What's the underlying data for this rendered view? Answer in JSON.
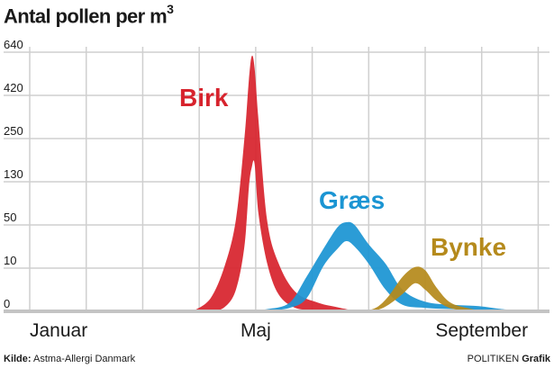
{
  "title_main": "Antal pollen per m",
  "title_sup": "3",
  "source_label": "Kilde:",
  "source_text": "Astma-Allergi Danmark",
  "credit_publisher": "POLITIKEN",
  "credit_dept": "Grafik",
  "colors": {
    "Birk": "#d7232d",
    "Græs": "#1b95d3",
    "Bynke": "#b58a1c",
    "grid": "#cfcfcf",
    "baseline": "#c4c4c4"
  },
  "chart_data": {
    "type": "area",
    "title": "Antal pollen per m³",
    "xlabel": "",
    "ylabel": "",
    "x_unit": "month index (0 = 1 January)",
    "xlim": [
      0,
      9.2
    ],
    "y_scale": "nonlinear (as printed on axis)",
    "y_ticks": [
      0,
      10,
      50,
      130,
      250,
      420,
      640
    ],
    "x_tick_labels": [
      {
        "label": "Januar",
        "x": 0
      },
      {
        "label": "Maj",
        "x": 4
      },
      {
        "label": "September",
        "x": 8
      }
    ],
    "grid": true,
    "legend": "inline labels next to curves",
    "series": [
      {
        "name": "Birk",
        "points": [
          {
            "x": 2.9,
            "min": 0,
            "max": 0
          },
          {
            "x": 3.2,
            "min": 0,
            "max": 3
          },
          {
            "x": 3.45,
            "min": 1,
            "max": 12
          },
          {
            "x": 3.65,
            "min": 5,
            "max": 60
          },
          {
            "x": 3.8,
            "min": 30,
            "max": 250
          },
          {
            "x": 3.88,
            "min": 120,
            "max": 500
          },
          {
            "x": 3.93,
            "min": 170,
            "max": 620
          },
          {
            "x": 3.98,
            "min": 180,
            "max": 560
          },
          {
            "x": 4.05,
            "min": 70,
            "max": 320
          },
          {
            "x": 4.2,
            "min": 15,
            "max": 60
          },
          {
            "x": 4.4,
            "min": 4,
            "max": 15
          },
          {
            "x": 4.7,
            "min": 0.8,
            "max": 4.5
          },
          {
            "x": 5.1,
            "min": 0.3,
            "max": 2.0
          },
          {
            "x": 5.5,
            "min": 0,
            "max": 0.8
          },
          {
            "x": 5.75,
            "min": 0,
            "max": 0
          }
        ]
      },
      {
        "name": "Græs",
        "points": [
          {
            "x": 3.8,
            "min": 0,
            "max": 0
          },
          {
            "x": 4.2,
            "min": 0.2,
            "max": 0.5
          },
          {
            "x": 4.6,
            "min": 0.8,
            "max": 2.0
          },
          {
            "x": 4.9,
            "min": 3,
            "max": 8
          },
          {
            "x": 5.2,
            "min": 12,
            "max": 28
          },
          {
            "x": 5.45,
            "min": 28,
            "max": 48
          },
          {
            "x": 5.6,
            "min": 35,
            "max": 55
          },
          {
            "x": 5.75,
            "min": 30,
            "max": 50
          },
          {
            "x": 6.0,
            "min": 14,
            "max": 32
          },
          {
            "x": 6.3,
            "min": 5,
            "max": 14
          },
          {
            "x": 6.6,
            "min": 1.5,
            "max": 5
          },
          {
            "x": 7.0,
            "min": 0.8,
            "max": 2.2
          },
          {
            "x": 7.5,
            "min": 0.5,
            "max": 1.5
          },
          {
            "x": 7.95,
            "min": 0.4,
            "max": 1.2
          },
          {
            "x": 8.3,
            "min": 0.1,
            "max": 0.6
          },
          {
            "x": 8.7,
            "min": 0,
            "max": 0
          }
        ]
      },
      {
        "name": "Bynke",
        "points": [
          {
            "x": 5.95,
            "min": 0,
            "max": 0
          },
          {
            "x": 6.15,
            "min": 0.3,
            "max": 1.0
          },
          {
            "x": 6.35,
            "min": 1.5,
            "max": 3.5
          },
          {
            "x": 6.6,
            "min": 4,
            "max": 8
          },
          {
            "x": 6.82,
            "min": 6.5,
            "max": 11
          },
          {
            "x": 7.0,
            "min": 5,
            "max": 9.5
          },
          {
            "x": 7.2,
            "min": 2.5,
            "max": 5.5
          },
          {
            "x": 7.45,
            "min": 0.7,
            "max": 2.0
          },
          {
            "x": 7.8,
            "min": 0.1,
            "max": 0.6
          },
          {
            "x": 8.05,
            "min": 0,
            "max": 0
          }
        ]
      }
    ],
    "annotations": [
      {
        "text": "Birk",
        "series": "Birk"
      },
      {
        "text": "Græs",
        "series": "Græs"
      },
      {
        "text": "Bynke",
        "series": "Bynke"
      }
    ]
  }
}
